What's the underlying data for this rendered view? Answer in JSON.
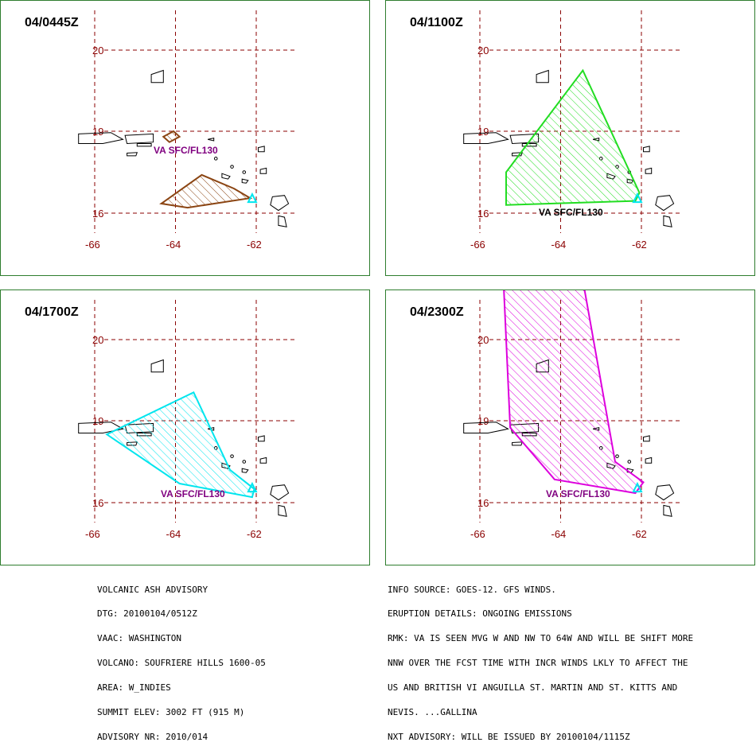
{
  "panels": [
    {
      "title": "04/0445Z",
      "poly_color": "#8b4513",
      "label": "VA SFC/FL130",
      "label_color": "#800080",
      "polygons": [
        [
          [
            -64.3,
            18.8
          ],
          [
            -64.05,
            19.0
          ],
          [
            -63.9,
            18.8
          ],
          [
            -64.15,
            18.6
          ]
        ],
        [
          [
            -64.35,
            16.35
          ],
          [
            -63.35,
            17.4
          ],
          [
            -62.55,
            16.9
          ],
          [
            -62.15,
            16.55
          ],
          [
            -63.7,
            16.2
          ]
        ]
      ]
    },
    {
      "title": "04/1100Z",
      "poly_color": "#22dd22",
      "label": "VA SFC/FL130",
      "label_color": "#000000",
      "polygons": [
        [
          [
            -65.35,
            17.5
          ],
          [
            -63.45,
            19.75
          ],
          [
            -62.05,
            16.75
          ],
          [
            -62.15,
            16.45
          ],
          [
            -65.35,
            16.3
          ]
        ]
      ]
    },
    {
      "title": "04/1700Z",
      "poly_color": "#00e5ee",
      "label": "VA SFC/FL130",
      "label_color": "#800080",
      "polygons": [
        [
          [
            -65.7,
            18.5
          ],
          [
            -63.55,
            19.35
          ],
          [
            -62.65,
            17.2
          ],
          [
            -62.05,
            16.5
          ],
          [
            -62.1,
            16.2
          ],
          [
            -63.9,
            16.7
          ]
        ]
      ]
    },
    {
      "title": "04/2300Z",
      "poly_color": "#dd00dd",
      "label": "VA SFC/FL130",
      "label_color": "#800080",
      "polygons": [
        [
          [
            -65.45,
            21.1
          ],
          [
            -63.6,
            21.15
          ],
          [
            -62.65,
            17.5
          ],
          [
            -61.95,
            16.75
          ],
          [
            -62.15,
            16.35
          ],
          [
            -64.15,
            16.85
          ],
          [
            -65.25,
            18.75
          ]
        ]
      ]
    }
  ],
  "axes": {
    "lat_ticks": [
      "20",
      "19",
      "16"
    ],
    "lon_ticks": [
      "-66",
      "-64",
      "-62"
    ]
  },
  "advisory_left": {
    "line1": "VOLCANIC ASH ADVISORY",
    "line2": "DTG: 20100104/0512Z",
    "line3": "VAAC: WASHINGTON",
    "line4": "VOLCANO: SOUFRIERE HILLS 1600-05",
    "line5": "AREA: W_INDIES",
    "line6": "SUMMIT ELEV: 3002 FT (915 M)",
    "line7": "ADVISORY NR: 2010/014"
  },
  "advisory_right": {
    "line1": "INFO SOURCE: GOES-12. GFS WINDS.",
    "line2": "ERUPTION DETAILS: ONGOING EMISSIONS",
    "line3": "RMK: VA IS SEEN MVG W AND NW TO 64W AND WILL BE SHIFT MORE",
    "line4": "NNW OVER THE FCST TIME WITH INCR WINDS LKLY TO AFFECT THE",
    "line5": "US AND BRITISH VI ANGUILLA ST. MARTIN AND ST. KITTS AND",
    "line6": "NEVIS. ...GALLINA",
    "line7": "NXT ADVISORY: WILL BE ISSUED BY 20100104/1115Z"
  },
  "colors": {
    "grid": "#8b0000",
    "border": "#2e7d2e",
    "coast": "#000000",
    "volcano_marker": "#00e5ee"
  }
}
